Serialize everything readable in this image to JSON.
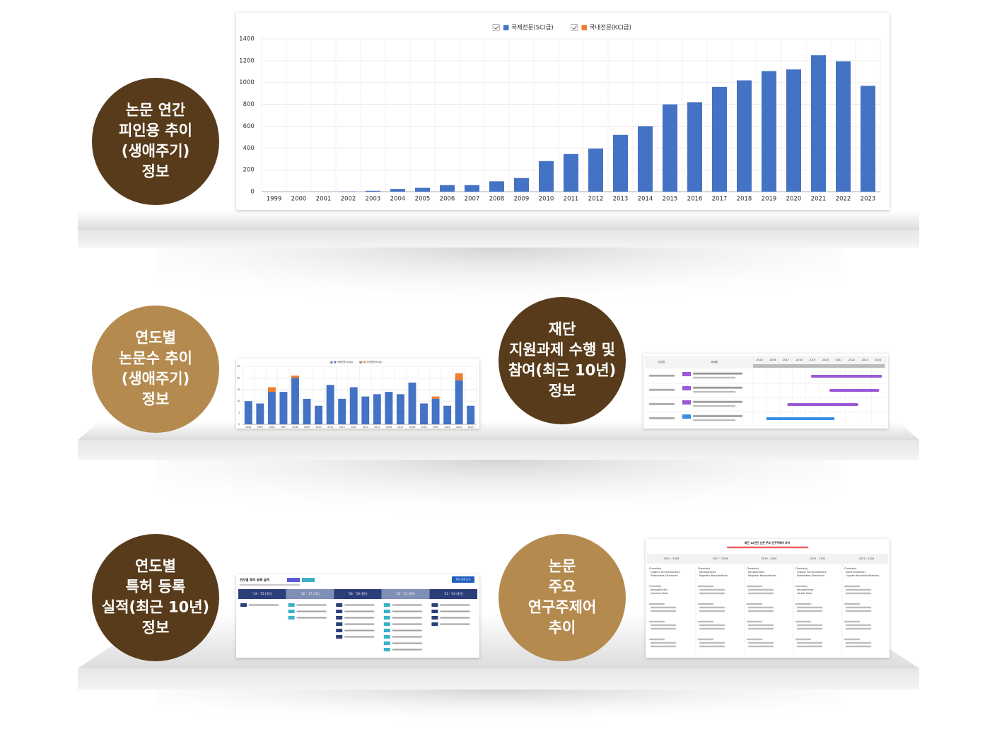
{
  "labels": [
    [
      "논문 연간",
      "피인용 추이",
      "(생애주기)",
      "정보"
    ],
    [
      "연도별",
      "논문수 추이",
      "(생애주기)",
      "정보"
    ],
    [
      "재단",
      "지원과제 수행 및",
      "참여(최근 10년)",
      "정보"
    ],
    [
      "연도별",
      "특허 등록",
      "실적(최근 10년)",
      "정보"
    ],
    [
      "논문",
      "주요",
      "연구주제어",
      "추이"
    ]
  ],
  "chart_data": [
    {
      "type": "bar",
      "categories": [
        "1999",
        "2000",
        "2001",
        "2002",
        "2003",
        "2004",
        "2005",
        "2006",
        "2007",
        "2008",
        "2009",
        "2010",
        "2011",
        "2012",
        "2013",
        "2014",
        "2015",
        "2016",
        "2017",
        "2018",
        "2019",
        "2020",
        "2021",
        "2022",
        "2023"
      ],
      "series": [
        {
          "name": "국제전문(SCI급)",
          "color": "#4472c4",
          "values": [
            0,
            0,
            0,
            2,
            8,
            25,
            35,
            60,
            60,
            95,
            125,
            280,
            345,
            395,
            520,
            600,
            800,
            820,
            960,
            1020,
            1105,
            1120,
            1250,
            1195,
            970
          ]
        },
        {
          "name": "국내전문(KCI급)",
          "color": "#ed7d31",
          "values": [
            0,
            0,
            0,
            0,
            0,
            0,
            0,
            0,
            0,
            0,
            0,
            0,
            0,
            0,
            0,
            0,
            0,
            0,
            0,
            0,
            0,
            0,
            0,
            0,
            0
          ]
        }
      ],
      "ylim": [
        0,
        1400
      ],
      "yticks": [
        0,
        200,
        400,
        600,
        800,
        1000,
        1200,
        1400
      ],
      "grid": true,
      "stacked": true,
      "legend": "top"
    },
    {
      "type": "bar",
      "categories": [
        "2004",
        "2005",
        "2006",
        "2007",
        "2008",
        "2009",
        "2010",
        "2011",
        "2012",
        "2013",
        "2014",
        "2015",
        "2016",
        "2017",
        "2018",
        "2019",
        "2020",
        "2021",
        "2022",
        "2023"
      ],
      "series": [
        {
          "name": "국제전문(SCI급)",
          "color": "#4472c4",
          "values": [
            10,
            9,
            14,
            14,
            20,
            11,
            8,
            17,
            11,
            16,
            12,
            13,
            14,
            13,
            18,
            9,
            11,
            8,
            19,
            8
          ]
        },
        {
          "name": "국내전문(KCI급)",
          "color": "#ed7d31",
          "values": [
            0,
            0,
            2,
            0,
            1,
            0,
            0,
            0,
            0,
            0,
            0,
            0,
            0,
            0,
            0,
            0,
            1,
            0,
            3,
            0
          ]
        }
      ],
      "ylim": [
        0,
        25
      ],
      "yticks": [
        0,
        5,
        10,
        15,
        20,
        25
      ],
      "grid": true,
      "stacked": true,
      "legend": "top"
    }
  ],
  "gantt": {
    "headers": [
      "사업명",
      "과제명"
    ],
    "years": [
      "2015",
      "2016",
      "2017",
      "2018",
      "2019",
      "2020",
      "2021",
      "2022",
      "2023",
      "2024"
    ]
  },
  "patent": {
    "title": "연도별 특허 등록 실적",
    "button": "특허 목록 보기",
    "periods": [
      "'14 - '15 (3건)",
      "'16 - '17 (3건)",
      "'18 - '19 (8건)",
      "'20 - '21 (8건)",
      "'22 - '24 (4건)"
    ]
  },
  "topics": {
    "title": "최근 10년간 논문 주요 연구주제어 추이",
    "periods": [
      "2015 - 2016",
      "2017 - 2018",
      "2019 - 2020",
      "2021 - 2022",
      "2023 - 2024"
    ],
    "columns": [
      [
        [
          "Chemistry",
          "Organic Semiconductors",
          "Stretchable Electronics"
        ],
        [
          "Chemistry",
          "Nanoparticles",
          "Quantum Dots"
        ]
      ],
      [
        [
          "Chemistry",
          "Nanoparticles",
          "Magnetic Nanoparticles"
        ]
      ],
      [
        [
          "Chemistry",
          "Nanoparticles",
          "Magnetic Nanoparticles"
        ]
      ],
      [
        [
          "Chemistry",
          "Organic Semiconductors",
          "Stretchable Electronics"
        ],
        [
          "Chemistry",
          "Nanoparticles",
          "Carbon Dots"
        ]
      ],
      [
        [
          "Chemistry",
          "Electrochemistry",
          "Oxygen Reduction Reaction"
        ]
      ]
    ]
  }
}
